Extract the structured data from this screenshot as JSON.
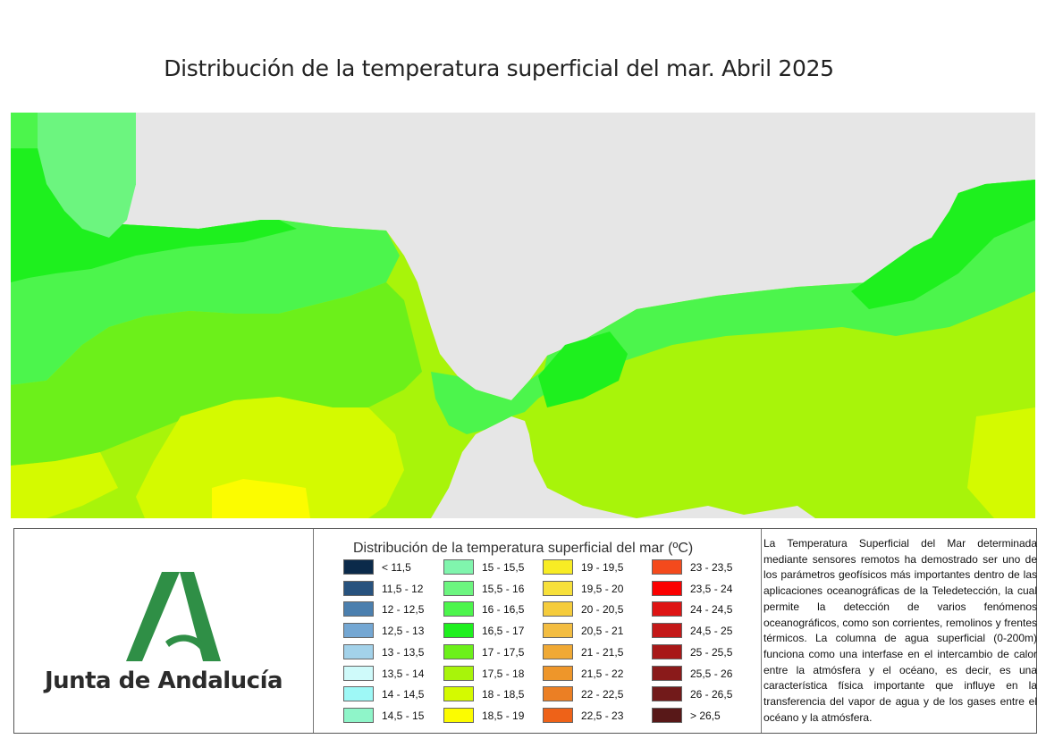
{
  "title": "Distribución de la temperatura superficial del mar. Abril 2025",
  "colors": {
    "land": "#e6e6e6",
    "logo_green": "#2f8f46"
  },
  "logo": {
    "text": "Junta de Andalucía"
  },
  "legend": {
    "title": "Distribución de la temperatura superficial del mar (ºC)",
    "columns": [
      [
        {
          "label": "< 11,5",
          "color": "#0b2a4a"
        },
        {
          "label": "11,5 - 12",
          "color": "#27527e"
        },
        {
          "label": "12 - 12,5",
          "color": "#4b7fae"
        },
        {
          "label": "12,5 - 13",
          "color": "#74a7d3"
        },
        {
          "label": "13 - 13,5",
          "color": "#a3d2ea"
        },
        {
          "label": "13,5 - 14",
          "color": "#cffafa"
        },
        {
          "label": "14 - 14,5",
          "color": "#9ef8f6"
        },
        {
          "label": "14,5 - 15",
          "color": "#8ff5c9"
        }
      ],
      [
        {
          "label": "15 - 15,5",
          "color": "#80f5ad"
        },
        {
          "label": "15,5 - 16",
          "color": "#6cf57f"
        },
        {
          "label": "16 - 16,5",
          "color": "#4cf54c"
        },
        {
          "label": "16,5 - 17",
          "color": "#1ef01e"
        },
        {
          "label": "17 - 17,5",
          "color": "#6cf01a"
        },
        {
          "label": "17,5 - 18",
          "color": "#a8f40a"
        },
        {
          "label": "18 - 18,5",
          "color": "#d4fa00"
        },
        {
          "label": "18,5 - 19",
          "color": "#fcfc00"
        }
      ],
      [
        {
          "label": "19 - 19,5",
          "color": "#f8ec24"
        },
        {
          "label": "19,5 - 20",
          "color": "#f7e03a"
        },
        {
          "label": "20 - 20,5",
          "color": "#f5cc3c"
        },
        {
          "label": "20,5 - 21",
          "color": "#f3bd41"
        },
        {
          "label": "21 - 21,5",
          "color": "#f0a934"
        },
        {
          "label": "21,5 - 22",
          "color": "#ee962a"
        },
        {
          "label": "22 - 22,5",
          "color": "#eb7f24"
        },
        {
          "label": "22,5 - 23",
          "color": "#ee6218"
        }
      ],
      [
        {
          "label": "23 - 23,5",
          "color": "#f44a1c"
        },
        {
          "label": "23,5 - 24",
          "color": "#fb0000"
        },
        {
          "label": "24 - 24,5",
          "color": "#de1414"
        },
        {
          "label": "24,5 - 25",
          "color": "#c41818"
        },
        {
          "label": "25 - 25,5",
          "color": "#a81818"
        },
        {
          "label": "25,5 - 26",
          "color": "#8a1a1a"
        },
        {
          "label": "26 - 26,5",
          "color": "#721a1a"
        },
        {
          "label": "> 26,5",
          "color": "#581818"
        }
      ]
    ]
  },
  "description": "La Temperatura Superficial del Mar determinada mediante sensores remotos ha demostrado ser uno de los parámetros geofísicos más importantes dentro de las aplicaciones oceanográficas de la Teledetección, la cual permite la detección de varios fenómenos oceanográficos, como son corrientes, remolinos y frentes térmicos. La columna de agua superficial (0-200m) funciona como una interfase en el intercambio de calor entre la atmósfera y el océano, es decir, es una característica física importante que influye en la transferencia del vapor de agua y de los gases entre el océano y la atmósfera."
}
